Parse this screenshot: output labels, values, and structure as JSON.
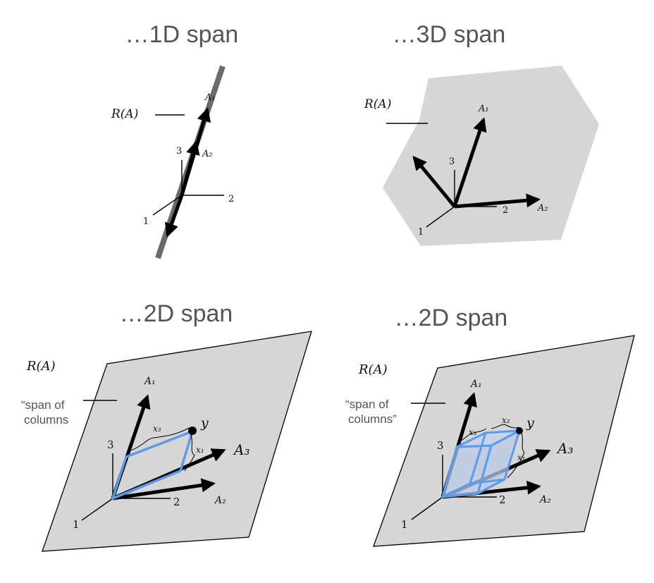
{
  "panels": {
    "one_d": {
      "title": "…1D span",
      "range_label": "R(A)",
      "axis_1": "1",
      "axis_2": "2",
      "axis_3": "3",
      "vec_a1": "A₁",
      "vec_a2": "A₂"
    },
    "three_d": {
      "title": "…3D span",
      "range_label": "R(A)",
      "axis_1": "1",
      "axis_2": "2",
      "axis_3": "3",
      "vec_a1": "A₁",
      "vec_a2": "A₂"
    },
    "two_d_left": {
      "title": "…2D span",
      "range_label": "R(A)",
      "note_line1": "“span of",
      "note_line2": "columns",
      "axis_1": "1",
      "axis_2": "2",
      "axis_3": "3",
      "vec_a1": "A₁",
      "vec_a2": "A₂",
      "vec_a3": "A₃",
      "point_y": "y",
      "coef_x1": "x₁",
      "coef_x3": "x₃"
    },
    "two_d_right": {
      "title": "…2D span",
      "range_label": "R(A)",
      "note_line1": "“span of",
      "note_line2": "columns”",
      "axis_1": "1",
      "axis_2": "2",
      "axis_3": "3",
      "vec_a1": "A₁",
      "vec_a2": "A₂",
      "vec_a3": "A₃",
      "point_y": "y",
      "coef_x1": "x₁",
      "coef_x2": "x₂",
      "coef_x3": "x₃"
    }
  },
  "colors": {
    "plane_fill": "#d6d6d6",
    "plane_light": "#e0e0e0",
    "line_gray": "#6a6a6a",
    "blue": "#5b9bec",
    "blue_fill": "#b9c9e6"
  }
}
